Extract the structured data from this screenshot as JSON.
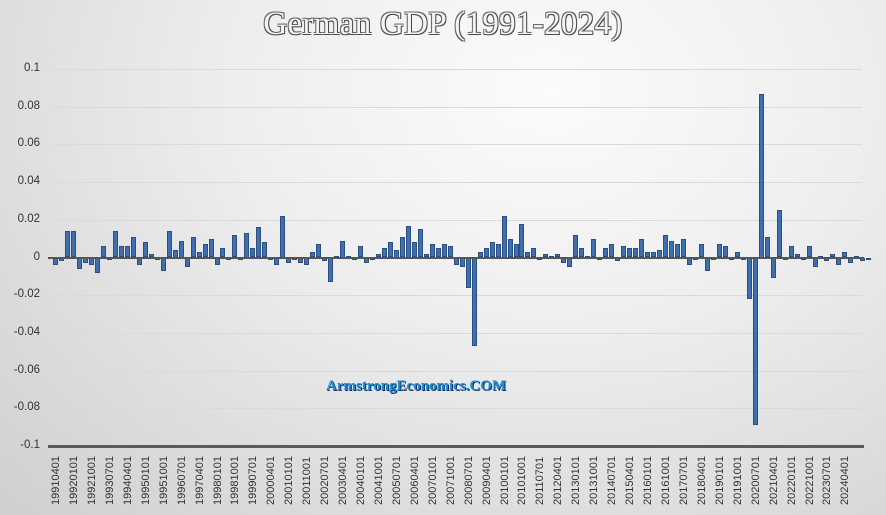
{
  "chart_data": {
    "type": "bar",
    "title": "German GDP (1991-2024)",
    "xlabel": "",
    "ylabel": "",
    "ylim": [
      -0.1,
      0.1
    ],
    "yticks": [
      "0.1",
      "0.08",
      "0.06",
      "0.04",
      "0.02",
      "0",
      "-0.02",
      "-0.04",
      "-0.06",
      "-0.08",
      "-0.1"
    ],
    "grid": true,
    "legend": null,
    "xtick_labels": [
      "19910401",
      "19920101",
      "19921001",
      "19930701",
      "19940401",
      "19950101",
      "19951001",
      "19960701",
      "19970401",
      "19980101",
      "19981001",
      "19990701",
      "20000401",
      "20010101",
      "20011001",
      "20020701",
      "20030401",
      "20040101",
      "20041001",
      "20050701",
      "20060401",
      "20070101",
      "20071001",
      "20080701",
      "20090401",
      "20100101",
      "20101001",
      "20110701",
      "20120401",
      "20130101",
      "20131001",
      "20140701",
      "20150401",
      "20160101",
      "20161001",
      "20170701",
      "20180401",
      "20190101",
      "20191001",
      "20200701",
      "20210401",
      "20220101",
      "20221001",
      "20230701",
      "20240401"
    ],
    "start_quarter": "1991Q2",
    "values": [
      -0.004,
      -0.002,
      0.014,
      0.014,
      -0.006,
      -0.003,
      -0.004,
      -0.008,
      0.006,
      -0.001,
      0.014,
      0.006,
      0.006,
      0.011,
      -0.004,
      0.008,
      0.002,
      0.0,
      -0.007,
      0.014,
      0.004,
      0.009,
      -0.005,
      0.011,
      0.003,
      0.007,
      0.01,
      -0.004,
      0.005,
      0.0,
      0.012,
      -0.001,
      0.013,
      0.005,
      0.016,
      0.008,
      0.0,
      -0.004,
      0.022,
      -0.003,
      0.0,
      -0.003,
      -0.004,
      0.003,
      0.007,
      -0.002,
      -0.013,
      0.001,
      0.009,
      0.001,
      -0.001,
      0.006,
      -0.003,
      0.0,
      0.002,
      0.005,
      0.008,
      0.004,
      0.011,
      0.017,
      0.008,
      0.015,
      0.002,
      0.007,
      0.005,
      0.007,
      0.006,
      -0.004,
      -0.005,
      -0.016,
      -0.047,
      0.003,
      0.005,
      0.008,
      0.007,
      0.022,
      0.01,
      0.007,
      0.018,
      0.003,
      0.005,
      0.0,
      0.002,
      0.001,
      0.002,
      -0.003,
      -0.005,
      0.012,
      0.005,
      0.001,
      0.01,
      0.0,
      0.005,
      0.007,
      -0.002,
      0.006,
      0.005,
      0.005,
      0.01,
      0.003,
      0.003,
      0.004,
      0.012,
      0.009,
      0.007,
      0.01,
      -0.004,
      0.0,
      0.007,
      -0.007,
      0.0,
      0.007,
      0.006,
      0.0,
      0.003,
      0.0,
      -0.022,
      -0.089,
      0.087,
      0.011,
      -0.011,
      0.025,
      0.0,
      0.006,
      0.002,
      0.0,
      0.006,
      -0.005,
      0.001,
      -0.002,
      0.002,
      -0.004,
      0.003,
      -0.003,
      0.001,
      -0.002,
      0.0
    ]
  },
  "watermark": "ArmstrongEconomics.COM"
}
